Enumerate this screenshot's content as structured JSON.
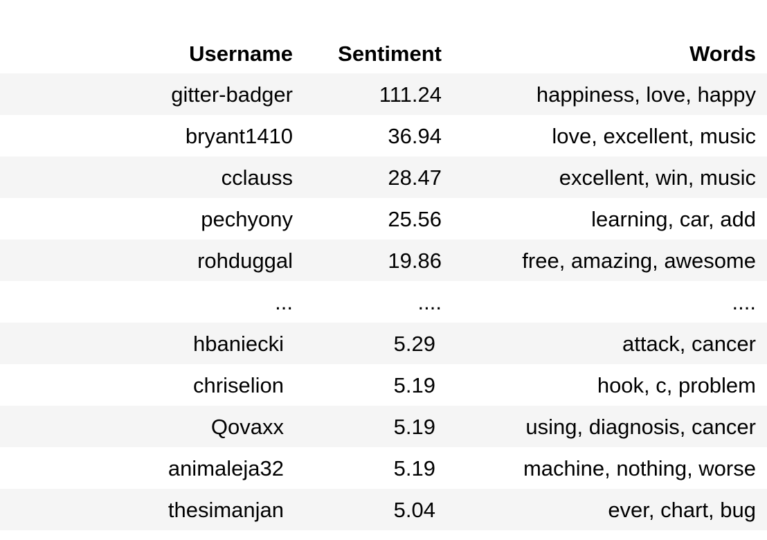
{
  "table": {
    "headers": {
      "username": "Username",
      "sentiment": "Sentiment",
      "words": "Words"
    },
    "rows": [
      {
        "username": "gitter-badger",
        "sentiment": "111.24",
        "words": "happiness, love, happy"
      },
      {
        "username": "bryant1410",
        "sentiment": "36.94",
        "words": "love, excellent, music"
      },
      {
        "username": "cclauss",
        "sentiment": "28.47",
        "words": "excellent, win, music"
      },
      {
        "username": "pechyony",
        "sentiment": "25.56",
        "words": "learning, car, add"
      },
      {
        "username": "rohduggal",
        "sentiment": "19.86",
        "words": "free, amazing, awesome"
      },
      {
        "username": "...",
        "sentiment": "....",
        "words": "...."
      },
      {
        "username": "hbaniecki",
        "sentiment": "5.29",
        "words": "attack, cancer"
      },
      {
        "username": "chriselion",
        "sentiment": "5.19",
        "words": "hook, c, problem"
      },
      {
        "username": "Qovaxx",
        "sentiment": "5.19",
        "words": "using, diagnosis, cancer"
      },
      {
        "username": "animaleja32",
        "sentiment": "5.19",
        "words": "machine, nothing, worse"
      },
      {
        "username": "thesimanjan",
        "sentiment": "5.04",
        "words": "ever, chart, bug"
      }
    ]
  }
}
